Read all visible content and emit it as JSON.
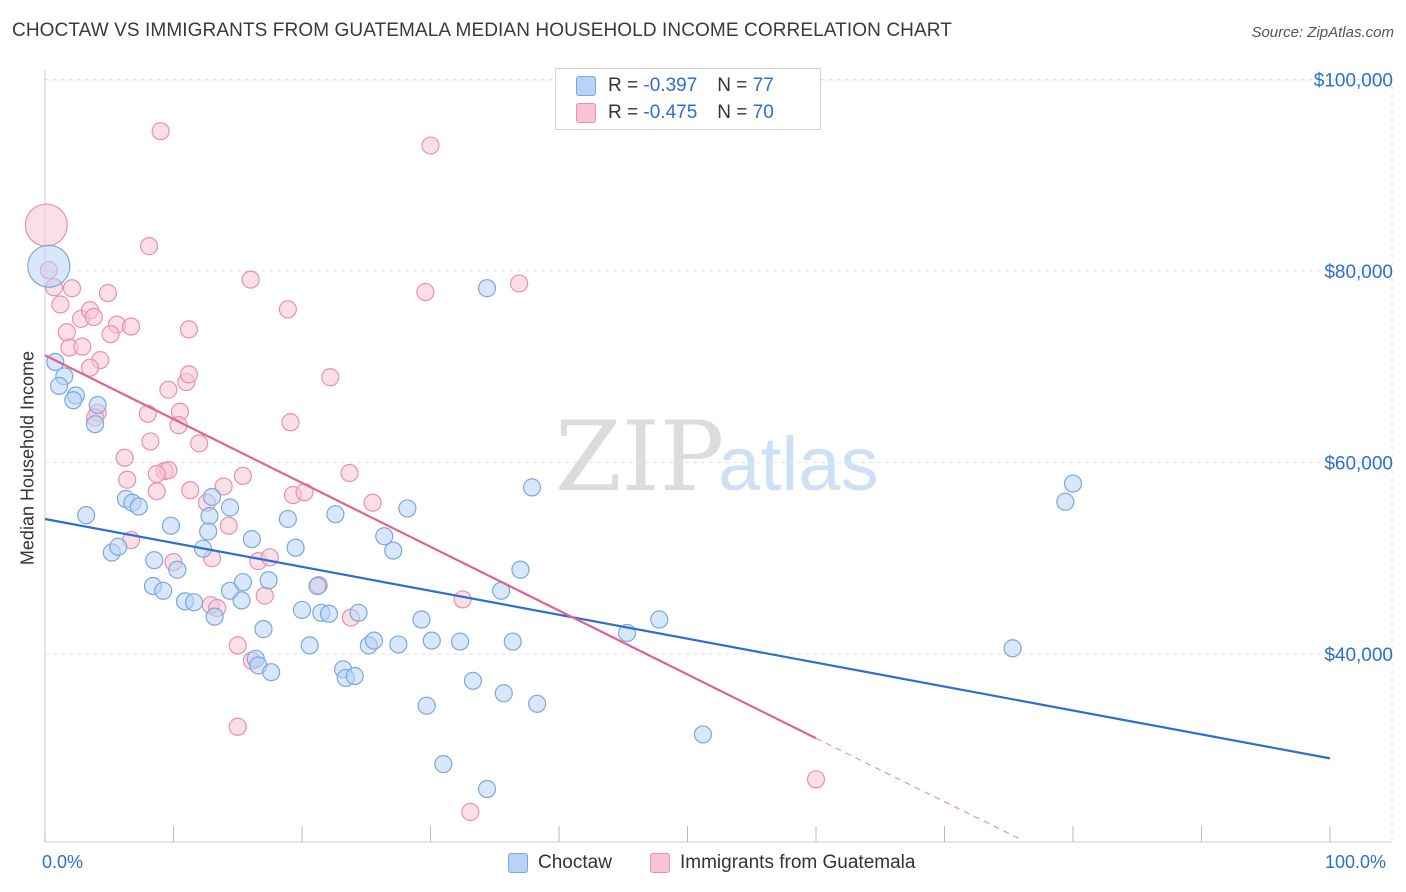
{
  "title": "CHOCTAW VS IMMIGRANTS FROM GUATEMALA MEDIAN HOUSEHOLD INCOME CORRELATION CHART",
  "source": "Source: ZipAtlas.com",
  "watermark": {
    "zip": "ZIP",
    "atlas": "atlas"
  },
  "legend_top": {
    "rows": [
      {
        "r_label": "R =",
        "r_value": "-0.397",
        "n_label": "N =",
        "n_value": "77"
      },
      {
        "r_label": "R =",
        "r_value": "-0.475",
        "n_label": "N =",
        "n_value": "70"
      }
    ]
  },
  "legend_bottom": {
    "choctaw": "Choctaw",
    "guatemala": "Immigrants from Guatemala"
  },
  "colors": {
    "choctaw_fill": "#b8d3f5",
    "choctaw_stroke": "#7aa8e0",
    "choctaw_line": "#2a6fd1",
    "guatemala_fill": "#f8c4d4",
    "guatemala_stroke": "#ea90ad",
    "guatemala_line": "#e0628e",
    "axis_label": "#2c6fd0"
  },
  "chart_data": {
    "type": "scatter",
    "xlabel": "",
    "ylabel": "Median Household Income",
    "x_tick_labels": [
      "0.0%",
      "100.0%"
    ],
    "y_tick_labels": [
      "$40,000",
      "$60,000",
      "$80,000",
      "$100,000"
    ],
    "y_ticks": [
      40000,
      60000,
      80000,
      100000
    ],
    "xlim": [
      0,
      100
    ],
    "ylim": [
      20000,
      102000
    ],
    "grid": true,
    "series": [
      {
        "name": "Choctaw",
        "trend": {
          "x0": 0,
          "y0": 54100,
          "x1": 100,
          "y1": 29100
        },
        "points": [
          [
            0.3,
            80.5,
            "L"
          ],
          [
            0.8,
            70.5
          ],
          [
            1.5,
            69
          ],
          [
            1.1,
            68
          ],
          [
            2.4,
            67
          ],
          [
            2.2,
            66.5
          ],
          [
            4.1,
            66
          ],
          [
            3.9,
            64
          ],
          [
            3.2,
            54.5
          ],
          [
            6.3,
            56.2
          ],
          [
            6.8,
            55.8
          ],
          [
            7.3,
            55.4
          ],
          [
            5.2,
            50.6
          ],
          [
            5.7,
            51.2
          ],
          [
            8.5,
            49.8
          ],
          [
            9.8,
            53.4
          ],
          [
            10.3,
            48.8
          ],
          [
            8.4,
            47.1
          ],
          [
            9.2,
            46.6
          ],
          [
            10.9,
            45.5
          ],
          [
            11.6,
            45.4
          ],
          [
            13,
            56.4
          ],
          [
            12.8,
            54.4
          ],
          [
            12.7,
            52.8
          ],
          [
            14.4,
            55.3
          ],
          [
            12.3,
            51
          ],
          [
            13.2,
            43.9
          ],
          [
            14.4,
            46.6
          ],
          [
            15.3,
            45.6
          ],
          [
            15.4,
            47.5
          ],
          [
            16.1,
            52
          ],
          [
            17.4,
            47.7
          ],
          [
            18.9,
            54.1
          ],
          [
            19.5,
            51.1
          ],
          [
            17.0,
            42.6
          ],
          [
            20.0,
            44.6
          ],
          [
            20.6,
            40.9
          ],
          [
            21.2,
            47.1
          ],
          [
            21.5,
            44.3
          ],
          [
            22.1,
            44.2
          ],
          [
            22.6,
            54.6
          ],
          [
            16.4,
            39.5
          ],
          [
            16.6,
            38.8
          ],
          [
            17.6,
            38.1
          ],
          [
            23.2,
            38.4
          ],
          [
            23.4,
            37.5
          ],
          [
            24.1,
            37.7
          ],
          [
            24.4,
            44.3
          ],
          [
            25.2,
            40.9
          ],
          [
            25.6,
            41.4
          ],
          [
            26.4,
            52.3
          ],
          [
            27.1,
            50.8
          ],
          [
            27.5,
            41.0
          ],
          [
            28.2,
            55.2
          ],
          [
            29.3,
            43.6
          ],
          [
            30.1,
            41.4
          ],
          [
            32.3,
            41.3
          ],
          [
            29.7,
            34.6
          ],
          [
            33.3,
            37.2
          ],
          [
            35.5,
            46.6
          ],
          [
            35.7,
            35.9
          ],
          [
            36.4,
            41.3
          ],
          [
            37.0,
            48.8
          ],
          [
            37.9,
            57.4
          ],
          [
            38.3,
            34.8
          ],
          [
            31.0,
            28.5
          ],
          [
            34.4,
            25.9
          ],
          [
            34.4,
            78.2
          ],
          [
            45.3,
            42.2
          ],
          [
            47.8,
            43.6
          ],
          [
            51.2,
            31.6
          ],
          [
            75.3,
            40.6
          ],
          [
            79.4,
            55.9
          ],
          [
            80.0,
            57.8
          ]
        ]
      },
      {
        "name": "Immigrants from Guatemala",
        "trend": {
          "x0": 0,
          "y0": 71200,
          "x1": 60,
          "y1": 31200
        },
        "trend_dashed": {
          "x0": 60,
          "y0": 31200,
          "x1": 76,
          "y1": 20600
        },
        "points": [
          [
            0.1,
            84.8,
            "L"
          ],
          [
            0.3,
            80.1
          ],
          [
            0.7,
            78.3
          ],
          [
            1.2,
            76.5
          ],
          [
            2.1,
            78.2
          ],
          [
            2.8,
            75
          ],
          [
            3.5,
            75.9
          ],
          [
            3.8,
            75.2
          ],
          [
            4.9,
            77.7
          ],
          [
            5.6,
            74.4
          ],
          [
            6.7,
            74.2
          ],
          [
            5.1,
            73.4
          ],
          [
            1.7,
            73.6
          ],
          [
            1.9,
            72
          ],
          [
            2.9,
            72.1
          ],
          [
            4.3,
            70.7
          ],
          [
            3.5,
            69.9
          ],
          [
            8.0,
            65.1
          ],
          [
            8.2,
            62.2
          ],
          [
            9.6,
            67.6
          ],
          [
            10.5,
            65.3
          ],
          [
            10.4,
            63.9
          ],
          [
            11.0,
            68.4
          ],
          [
            11.2,
            69.2
          ],
          [
            12.0,
            62.0
          ],
          [
            12.6,
            55.8
          ],
          [
            13.9,
            57.5
          ],
          [
            14.3,
            53.4
          ],
          [
            12.9,
            45.1
          ],
          [
            13.4,
            44.8
          ],
          [
            13.0,
            50.0
          ],
          [
            11.3,
            57.1
          ],
          [
            9.3,
            59.1
          ],
          [
            9.6,
            59.2
          ],
          [
            8.7,
            58.8
          ],
          [
            6.4,
            58.2
          ],
          [
            6.2,
            60.5
          ],
          [
            4.1,
            65.2
          ],
          [
            3.9,
            64.7
          ],
          [
            6.7,
            51.9
          ],
          [
            8.7,
            57.0
          ],
          [
            10.0,
            49.6
          ],
          [
            15.4,
            58.6
          ],
          [
            16.1,
            39.3
          ],
          [
            16.6,
            49.7
          ],
          [
            17.1,
            46.1
          ],
          [
            17.5,
            50.1
          ],
          [
            18.9,
            76.0
          ],
          [
            19.1,
            64.2
          ],
          [
            19.3,
            56.6
          ],
          [
            20.2,
            56.9
          ],
          [
            21.3,
            47.2
          ],
          [
            22.2,
            68.9
          ],
          [
            23.7,
            58.9
          ],
          [
            23.8,
            43.8
          ],
          [
            25.5,
            55.8
          ],
          [
            15.0,
            40.9
          ],
          [
            15.0,
            32.4
          ],
          [
            29.6,
            77.8
          ],
          [
            30.0,
            93.1
          ],
          [
            32.5,
            45.7
          ],
          [
            33.1,
            23.5
          ],
          [
            36.9,
            78.7
          ],
          [
            8.1,
            82.6
          ],
          [
            9.0,
            94.6
          ],
          [
            16.0,
            79.1
          ],
          [
            11.2,
            73.9
          ],
          [
            60.0,
            26.9
          ]
        ]
      }
    ]
  }
}
